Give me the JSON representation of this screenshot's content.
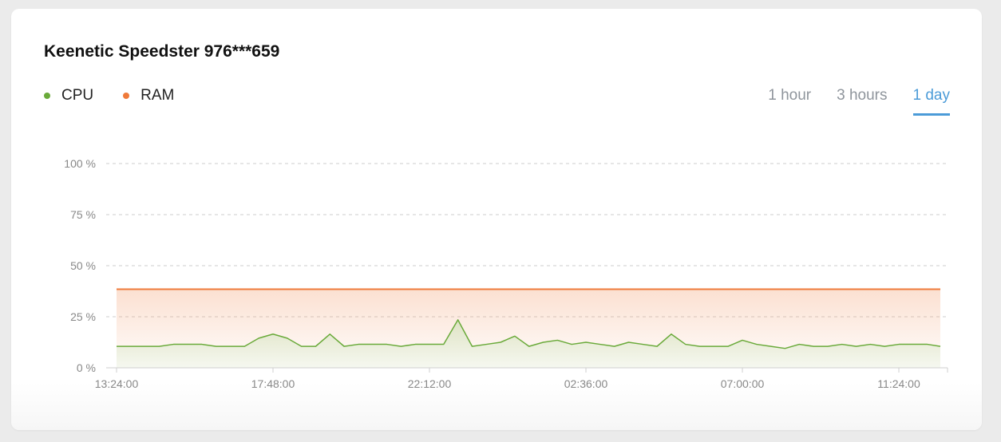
{
  "device_title": "Keenetic Speedster 976***659",
  "legend": [
    {
      "label": "CPU",
      "color": "#6aaa3a"
    },
    {
      "label": "RAM",
      "color": "#ef7a3a"
    }
  ],
  "tabs": [
    {
      "label": "1 hour",
      "active": false
    },
    {
      "label": "3 hours",
      "active": false
    },
    {
      "label": "1 day",
      "active": true
    }
  ],
  "colors": {
    "accent": "#4b9bd8",
    "cpu": "#6aaa3a",
    "ram": "#ef7a3a",
    "grid": "#cccccc",
    "axis_text": "#888888"
  },
  "chart_data": {
    "type": "area",
    "title": "",
    "xlabel": "",
    "ylabel": "",
    "ylim": [
      0,
      100
    ],
    "y_ticks": [
      0,
      25,
      50,
      75,
      100
    ],
    "y_tick_labels": [
      "0 %",
      "25 %",
      "50 %",
      "75 %",
      "100 %"
    ],
    "x_range": [
      0,
      1390
    ],
    "x_ticks": [
      0,
      264,
      528,
      792,
      1056,
      1320
    ],
    "x_tick_labels": [
      "13:24:00",
      "17:48:00",
      "22:12:00",
      "02:36:00",
      "07:00:00",
      "11:24:00"
    ],
    "grid": true,
    "legend_position": "top-left",
    "series": [
      {
        "name": "RAM",
        "color": "#ef7a3a",
        "x": [
          0,
          1390
        ],
        "values": [
          38.5,
          38.5
        ]
      },
      {
        "name": "CPU",
        "color": "#6aaa3a",
        "x": [
          0,
          24,
          48,
          72,
          96,
          120,
          144,
          168,
          192,
          216,
          240,
          264,
          288,
          312,
          336,
          360,
          384,
          408,
          432,
          456,
          480,
          504,
          528,
          552,
          576,
          600,
          624,
          648,
          672,
          696,
          720,
          744,
          768,
          792,
          816,
          840,
          864,
          888,
          912,
          936,
          960,
          984,
          1008,
          1032,
          1056,
          1080,
          1104,
          1128,
          1152,
          1176,
          1200,
          1224,
          1248,
          1272,
          1296,
          1320,
          1344,
          1368,
          1390
        ],
        "values": [
          10.5,
          10.5,
          10.5,
          10.5,
          11.5,
          11.5,
          11.5,
          10.5,
          10.5,
          10.5,
          14.5,
          16.5,
          14.5,
          10.5,
          10.5,
          16.5,
          10.5,
          11.5,
          11.5,
          11.5,
          10.5,
          11.5,
          11.5,
          11.5,
          23.5,
          10.5,
          11.5,
          12.5,
          15.5,
          10.5,
          12.5,
          13.5,
          11.5,
          12.5,
          11.5,
          10.5,
          12.5,
          11.5,
          10.5,
          16.5,
          11.5,
          10.5,
          10.5,
          10.5,
          13.5,
          11.5,
          10.5,
          9.5,
          11.5,
          10.5,
          10.5,
          11.5,
          10.5,
          11.5,
          10.5,
          11.5,
          11.5,
          11.5,
          10.5
        ]
      }
    ]
  }
}
